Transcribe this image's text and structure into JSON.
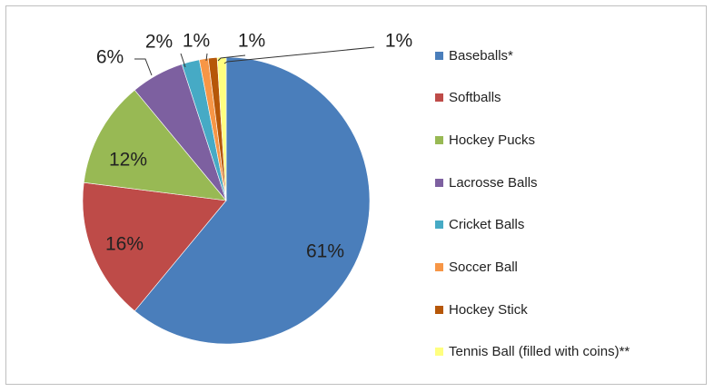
{
  "chart_data": {
    "type": "pie",
    "categories": [
      "Baseballs*",
      "Softballs",
      "Hockey Pucks",
      "Lacrosse Balls",
      "Cricket Balls",
      "Soccer Ball",
      "Hockey Stick",
      "Tennis Ball (filled with coins)**"
    ],
    "values": [
      61,
      16,
      12,
      6,
      2,
      1,
      1,
      1
    ],
    "data_labels": [
      "61%",
      "16%",
      "12%",
      "6%",
      "2%",
      "1%",
      "1%",
      "1%"
    ],
    "colors": [
      "#4a7ebb",
      "#be4b48",
      "#98b954",
      "#7d60a0",
      "#46aac5",
      "#f79646",
      "#b65708",
      "#ffff7f"
    ],
    "title": "",
    "legend_position": "right",
    "start": "top",
    "direction": "clockwise"
  }
}
